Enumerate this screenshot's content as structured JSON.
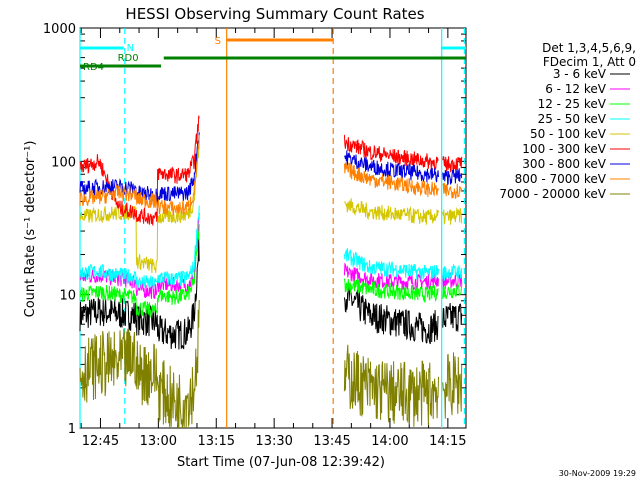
{
  "chart_data": {
    "type": "line",
    "title": "HESSI Observing Summary Count Rates",
    "xlabel": "Start Time (07-Jun-08 12:39:42)",
    "ylabel": "Count Rate (s⁻¹ detector⁻¹)",
    "yscale": "log",
    "ylim": [
      1,
      1000
    ],
    "xlim_minutes_after_start": [
      0,
      100
    ],
    "x_ticks": [
      {
        "label": "12:45",
        "t": 5.3
      },
      {
        "label": "13:00",
        "t": 20.3
      },
      {
        "label": "13:15",
        "t": 35.3
      },
      {
        "label": "13:30",
        "t": 50.3
      },
      {
        "label": "13:45",
        "t": 65.3
      },
      {
        "label": "14:00",
        "t": 80.3
      },
      {
        "label": "14:15",
        "t": 95.3
      }
    ],
    "y_ticks": [
      {
        "label": "1",
        "v": 1
      },
      {
        "label": "10",
        "v": 10
      },
      {
        "label": "100",
        "v": 100
      },
      {
        "label": "1000",
        "v": 1000
      }
    ],
    "legend_header": [
      "Det 1,3,4,5,6,9,",
      "FDecim 1, Att 0"
    ],
    "legend_position": "right",
    "series": [
      {
        "name": "3 - 6 keV",
        "color": "#000000",
        "segments": [
          {
            "x": [
              0,
              5,
              10,
              14.5,
              14.6,
              20,
              20.1,
              25,
              28,
              29.5,
              31
            ],
            "y": [
              7,
              7.5,
              7.2,
              7,
              6.5,
              6.2,
              5.3,
              5,
              5.2,
              7,
              25
            ]
          },
          {
            "x": [
              68.5,
              75,
              82,
              90,
              93
            ],
            "y": [
              10,
              7,
              6.2,
              5.5,
              6
            ]
          },
          {
            "x": [
              94,
              99
            ],
            "y": [
              6.5,
              7
            ]
          }
        ]
      },
      {
        "name": "6 - 12 keV",
        "color": "#ff00ff",
        "segments": [
          {
            "x": [
              0,
              5,
              10,
              14.5,
              14.6,
              20,
              20.1,
              25,
              28,
              29.5,
              31
            ],
            "y": [
              13.5,
              14,
              13.2,
              12.5,
              11,
              10.5,
              12,
              11.8,
              12,
              13,
              40
            ]
          },
          {
            "x": [
              68.5,
              75,
              82,
              90,
              93
            ],
            "y": [
              15,
              13,
              12.5,
              12.5,
              13
            ]
          },
          {
            "x": [
              94,
              99
            ],
            "y": [
              12.5,
              13
            ]
          }
        ]
      },
      {
        "name": "12 - 25 keV",
        "color": "#00ff00",
        "segments": [
          {
            "x": [
              0,
              5,
              10,
              14.5,
              14.6,
              20,
              20.1,
              25,
              28,
              29.5,
              31
            ],
            "y": [
              10,
              10.5,
              10,
              9.5,
              8,
              7.5,
              10,
              9.5,
              10,
              12,
              35
            ]
          },
          {
            "x": [
              68.5,
              75,
              82,
              90,
              93
            ],
            "y": [
              12,
              11,
              10.5,
              10,
              10.5
            ]
          },
          {
            "x": [
              94,
              99
            ],
            "y": [
              10.5,
              11
            ]
          }
        ]
      },
      {
        "name": "25 - 50 keV",
        "color": "#00ffff",
        "segments": [
          {
            "x": [
              0,
              5,
              10,
              14.5,
              14.6,
              20,
              20.1,
              25,
              28,
              29.5,
              31
            ],
            "y": [
              14.5,
              15,
              14,
              13.5,
              12.5,
              12,
              13.5,
              13,
              13.5,
              16,
              50
            ]
          },
          {
            "x": [
              68.5,
              75,
              82,
              90,
              93
            ],
            "y": [
              20,
              16,
              15.5,
              14.5,
              15
            ]
          },
          {
            "x": [
              94,
              99
            ],
            "y": [
              14.5,
              15
            ]
          }
        ]
      },
      {
        "name": "50 - 100 keV",
        "color": "#d4c600",
        "segments": [
          {
            "x": [
              0,
              5,
              10,
              14.5,
              14.6,
              20,
              20.1,
              25,
              28,
              29.5,
              31
            ],
            "y": [
              38,
              40,
              41,
              42,
              18,
              16,
              38,
              39,
              40,
              50,
              150
            ]
          },
          {
            "x": [
              68.5,
              75,
              82,
              90,
              93
            ],
            "y": [
              48,
              42,
              40,
              38,
              39
            ]
          },
          {
            "x": [
              94,
              99
            ],
            "y": [
              38,
              39
            ]
          }
        ]
      },
      {
        "name": "100 - 300 keV",
        "color": "#ff0000",
        "segments": [
          {
            "x": [
              0,
              5,
              10,
              14.5,
              14.6,
              20,
              20.1,
              25,
              28,
              29.5,
              31
            ],
            "y": [
              90,
              100,
              45,
              41,
              40,
              37,
              82,
              78,
              80,
              100,
              230
            ]
          },
          {
            "x": [
              68.5,
              75,
              82,
              90,
              93
            ],
            "y": [
              140,
              118,
              108,
              100,
              98
            ]
          },
          {
            "x": [
              94,
              99
            ],
            "y": [
              95,
              97
            ]
          }
        ]
      },
      {
        "name": "300 - 800 keV",
        "color": "#0000dd",
        "segments": [
          {
            "x": [
              0,
              5,
              10,
              14.5,
              14.6,
              20,
              20.1,
              25,
              28,
              29.5,
              31
            ],
            "y": [
              62,
              64,
              65,
              62,
              58,
              56,
              58,
              57,
              58,
              75,
              180
            ]
          },
          {
            "x": [
              68.5,
              75,
              82,
              90,
              93
            ],
            "y": [
              108,
              92,
              85,
              80,
              78
            ]
          },
          {
            "x": [
              94,
              99
            ],
            "y": [
              76,
              78
            ]
          }
        ]
      },
      {
        "name": "800 - 7000 keV",
        "color": "#ff8000",
        "segments": [
          {
            "x": [
              0,
              5,
              10,
              14.5,
              14.6,
              20,
              20.1,
              25,
              28,
              29.5,
              31
            ],
            "y": [
              52,
              54,
              58,
              56,
              52,
              50,
              46,
              44,
              45,
              58,
              150
            ]
          },
          {
            "x": [
              68.5,
              75,
              82,
              90,
              93
            ],
            "y": [
              88,
              74,
              68,
              62,
              60
            ]
          },
          {
            "x": [
              94,
              99
            ],
            "y": [
              60,
              61
            ]
          }
        ]
      },
      {
        "name": "7000 - 20000 keV",
        "color": "#808000",
        "segments": [
          {
            "x": [
              0,
              5,
              10,
              14.5,
              14.6,
              20,
              20.1,
              25,
              28,
              29.5,
              31
            ],
            "y": [
              2.6,
              3,
              3,
              3.5,
              2.6,
              2.6,
              2,
              1.5,
              1.7,
              2,
              6
            ]
          },
          {
            "x": [
              68.5,
              75,
              82,
              90,
              93
            ],
            "y": [
              2.5,
              2,
              1.8,
              1.8,
              2
            ]
          },
          {
            "x": [
              94,
              99
            ],
            "y": [
              2,
              2.2
            ]
          }
        ]
      }
    ],
    "annotations": {
      "flags": [
        {
          "label": "N",
          "color": "#00ffff",
          "segments": [
            [
              0,
              11.3
            ],
            [
              93.5,
              100
            ]
          ]
        },
        {
          "label": "RD0",
          "color": "#008000",
          "segments": [
            [
              21.7,
              100
            ]
          ]
        },
        {
          "label": "RD4",
          "color": "#008000",
          "segments": [
            [
              0,
              21
            ]
          ]
        },
        {
          "label": "S",
          "color": "#ff8000",
          "segments": [
            [
              38,
              65.6
            ]
          ]
        }
      ],
      "vertical_lines": [
        {
          "t": 0,
          "color": "#00ffff",
          "style": "solid"
        },
        {
          "t": 11.6,
          "color": "#00ffff",
          "style": "dashed"
        },
        {
          "t": 38,
          "color": "#ff8000",
          "style": "solid"
        },
        {
          "t": 65.6,
          "color": "#ff8000",
          "style": "dashed"
        },
        {
          "t": 93.7,
          "color": "#00ffff",
          "style": "solid"
        },
        {
          "t": 99.6,
          "color": "#00ffff",
          "style": "dashed"
        }
      ]
    }
  },
  "footer_date": "30-Nov-2009 19:29"
}
